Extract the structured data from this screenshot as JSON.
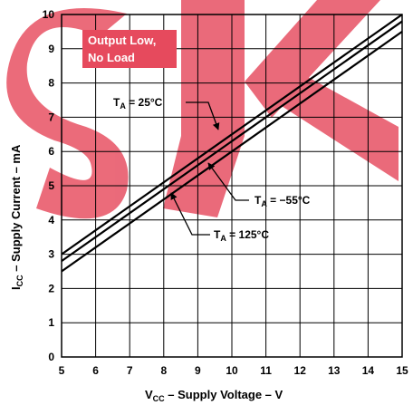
{
  "chart_data": {
    "type": "line",
    "xlabel": {
      "main": "V",
      "sub": "CC",
      "rest": " – Supply Voltage – V"
    },
    "ylabel": {
      "main": "I",
      "sub": "CC",
      "rest": "  – Supply Current – mA"
    },
    "xlim": [
      5,
      15
    ],
    "ylim": [
      0,
      10
    ],
    "x_ticks": [
      "5",
      "6",
      "7",
      "8",
      "9",
      "10",
      "11",
      "12",
      "13",
      "14",
      "15"
    ],
    "y_ticks": [
      "0",
      "1",
      "2",
      "3",
      "4",
      "5",
      "6",
      "7",
      "8",
      "9",
      "10"
    ],
    "grid": true,
    "annotation": [
      "Output Low,",
      "No Load"
    ],
    "series": [
      {
        "name": "T_A = 25°C",
        "label_main": "T",
        "label_sub": "A",
        "label_rest": " = 25°C",
        "color": "#000000",
        "x": [
          5,
          15
        ],
        "y": [
          3.0,
          10.0
        ]
      },
      {
        "name": "T_A = −55°C",
        "label_main": "T",
        "label_sub": "A",
        "label_rest": " = −55°C",
        "color": "#000000",
        "x": [
          5,
          15
        ],
        "y": [
          2.8,
          9.8
        ]
      },
      {
        "name": "T_A = 125°C",
        "label_main": "T",
        "label_sub": "A",
        "label_rest": " = 125°C",
        "color": "#000000",
        "x": [
          5,
          15
        ],
        "y": [
          2.5,
          9.5
        ]
      }
    ]
  }
}
